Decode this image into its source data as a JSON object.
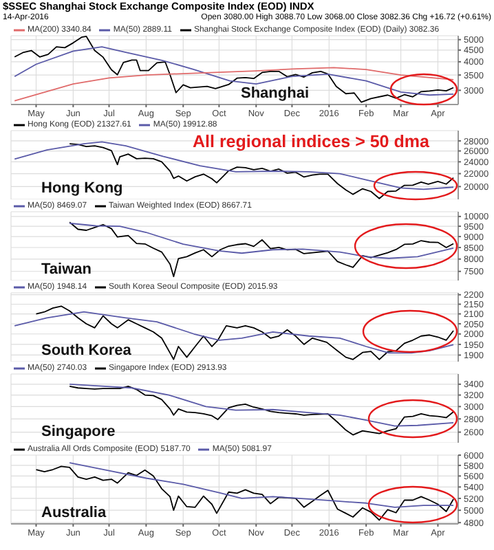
{
  "chart_data": [
    {
      "type": "line",
      "title": "$SSEC Shanghai Stock Exchange Composite Index (EOD) INDX",
      "subtitle": "14-Apr-2016",
      "annotations": [
        "Shanghai",
        "Open 3080.00 High 3088.70 Low 3068.00 Close 3082.36 Chg +16.72 (+0.61%)"
      ],
      "log": true,
      "grid": true,
      "legend": "top left",
      "xlim": [
        "2015-04-10",
        "2016-04-18"
      ],
      "xticks": [
        {
          "value": "2015-05-01",
          "label": "May"
        },
        {
          "value": "2015-06-01",
          "label": "Jun"
        },
        {
          "value": "2015-07-01",
          "label": "Jul"
        },
        {
          "value": "2015-08-01",
          "label": "Aug"
        },
        {
          "value": "2015-09-01",
          "label": "Sep"
        },
        {
          "value": "2015-10-01",
          "label": "Oct"
        },
        {
          "value": "2015-11-01",
          "label": "Nov"
        },
        {
          "value": "2015-12-01",
          "label": "Dec"
        },
        {
          "value": "2016-01-01",
          "label": "2016"
        },
        {
          "value": "2016-02-01",
          "label": "Feb"
        },
        {
          "value": "2016-03-01",
          "label": "Mar"
        },
        {
          "value": "2016-04-01",
          "label": "Apr"
        }
      ],
      "ylim": [
        2600,
        5200
      ],
      "yticks": [
        3000,
        3500,
        4000,
        4500,
        5000
      ],
      "series": [
        {
          "name": "Shanghai Stock Exchange Composite Index (EOD) (Daily) 3082.36",
          "color": "#000000",
          "x": [
            "2015-04-13",
            "2015-04-20",
            "2015-04-27",
            "2015-05-04",
            "2015-05-11",
            "2015-05-18",
            "2015-05-25",
            "2015-06-01",
            "2015-06-08",
            "2015-06-12",
            "2015-06-19",
            "2015-06-26",
            "2015-07-03",
            "2015-07-08",
            "2015-07-13",
            "2015-07-20",
            "2015-07-24",
            "2015-07-27",
            "2015-08-03",
            "2015-08-10",
            "2015-08-17",
            "2015-08-21",
            "2015-08-26",
            "2015-09-01",
            "2015-09-07",
            "2015-09-14",
            "2015-09-21",
            "2015-09-28",
            "2015-10-09",
            "2015-10-16",
            "2015-10-23",
            "2015-10-30",
            "2015-11-06",
            "2015-11-13",
            "2015-11-20",
            "2015-11-27",
            "2015-12-04",
            "2015-12-11",
            "2015-12-18",
            "2015-12-25",
            "2015-12-31",
            "2016-01-07",
            "2016-01-15",
            "2016-01-22",
            "2016-01-28",
            "2016-02-05",
            "2016-02-19",
            "2016-02-26",
            "2016-03-04",
            "2016-03-11",
            "2016-03-18",
            "2016-03-25",
            "2016-04-01",
            "2016-04-08",
            "2016-04-14"
          ],
          "values": [
            4200,
            4390,
            4480,
            4200,
            4310,
            4650,
            4610,
            4840,
            5120,
            5166,
            4480,
            4190,
            3690,
            3510,
            3970,
            4070,
            4070,
            3660,
            3660,
            3960,
            3990,
            3510,
            2930,
            3170,
            3080,
            3100,
            3120,
            3050,
            3180,
            3390,
            3410,
            3380,
            3590,
            3630,
            3630,
            3440,
            3520,
            3430,
            3580,
            3630,
            3540,
            3120,
            2900,
            2920,
            2660,
            2760,
            2860,
            2770,
            2870,
            2810,
            2960,
            2980,
            3010,
            2985,
            3082.36
          ]
        },
        {
          "name": "MA(50) 2889.11",
          "color": "#5a5aa8",
          "x": [
            "2015-04-13",
            "2015-05-01",
            "2015-06-01",
            "2015-06-25",
            "2015-07-15",
            "2015-08-15",
            "2015-09-10",
            "2015-10-10",
            "2015-11-01",
            "2015-12-01",
            "2015-12-31",
            "2016-02-01",
            "2016-03-01",
            "2016-03-25",
            "2016-04-14"
          ],
          "values": [
            3450,
            3900,
            4450,
            4650,
            4400,
            4050,
            3700,
            3300,
            3200,
            3450,
            3530,
            3300,
            2950,
            2860,
            2889.11
          ]
        },
        {
          "name": "MA(200) 3340.84",
          "color": "#e06a6a",
          "x": [
            "2015-04-13",
            "2015-06-01",
            "2015-07-01",
            "2015-08-01",
            "2015-09-01",
            "2015-10-01",
            "2015-11-01",
            "2015-12-01",
            "2016-01-05",
            "2016-02-01",
            "2016-03-01",
            "2016-04-14"
          ],
          "values": [
            2700,
            3200,
            3400,
            3500,
            3550,
            3600,
            3650,
            3720,
            3770,
            3700,
            3500,
            3340.84
          ]
        }
      ]
    },
    {
      "type": "line",
      "annotations": [
        "Hong Kong",
        "All regional indices > 50 dma"
      ],
      "log": true,
      "grid": true,
      "legend": "top left",
      "tick_labels": "y",
      "xlim": [
        "2015-04-10",
        "2016-04-18"
      ],
      "xticks": [
        {
          "value": "2015-05-01",
          "label": null
        },
        {
          "value": "2015-06-01",
          "label": null
        },
        {
          "value": "2015-07-01",
          "label": null
        },
        {
          "value": "2015-08-01",
          "label": null
        },
        {
          "value": "2015-09-01",
          "label": null
        },
        {
          "value": "2015-10-01",
          "label": null
        },
        {
          "value": "2015-11-01",
          "label": null
        },
        {
          "value": "2015-12-01",
          "label": null
        },
        {
          "value": "2016-01-01",
          "label": null
        },
        {
          "value": "2016-02-01",
          "label": null
        },
        {
          "value": "2016-03-01",
          "label": null
        },
        {
          "value": "2016-04-01",
          "label": null
        }
      ],
      "ylim": [
        18200,
        30200
      ],
      "yticks": [
        20000,
        22000,
        24000,
        26000,
        28000
      ],
      "series": [
        {
          "name": "Hong Kong (EOD) 21327.61",
          "color": "#000000",
          "x": [
            "2015-05-29",
            "2015-06-05",
            "2015-06-12",
            "2015-06-19",
            "2015-06-26",
            "2015-07-03",
            "2015-07-08",
            "2015-07-10",
            "2015-07-17",
            "2015-07-24",
            "2015-07-31",
            "2015-08-07",
            "2015-08-14",
            "2015-08-21",
            "2015-08-24",
            "2015-08-28",
            "2015-09-04",
            "2015-09-11",
            "2015-09-18",
            "2015-09-25",
            "2015-09-29",
            "2015-10-09",
            "2015-10-16",
            "2015-10-23",
            "2015-10-30",
            "2015-11-06",
            "2015-11-13",
            "2015-11-20",
            "2015-11-27",
            "2015-12-04",
            "2015-12-11",
            "2015-12-18",
            "2015-12-24",
            "2015-12-31",
            "2016-01-08",
            "2016-01-15",
            "2016-01-21",
            "2016-01-29",
            "2016-02-05",
            "2016-02-12",
            "2016-02-19",
            "2016-02-26",
            "2016-03-04",
            "2016-03-11",
            "2016-03-18",
            "2016-03-24",
            "2016-04-01",
            "2016-04-08",
            "2016-04-14"
          ],
          "values": [
            27420,
            27260,
            26860,
            27010,
            26660,
            26060,
            23520,
            24900,
            25410,
            24550,
            24640,
            24550,
            23990,
            22410,
            21250,
            21610,
            20840,
            21500,
            21920,
            21190,
            20560,
            22460,
            23070,
            22990,
            22640,
            22870,
            22400,
            22750,
            22070,
            22240,
            21460,
            21760,
            21920,
            21910,
            20450,
            19520,
            18890,
            19680,
            19290,
            18320,
            19290,
            19360,
            20180,
            20200,
            20670,
            20350,
            20780,
            20370,
            21327.61
          ]
        },
        {
          "name": "MA(50) 19912.88",
          "color": "#5a5aa8",
          "x": [
            "2015-04-13",
            "2015-05-10",
            "2015-06-10",
            "2015-06-25",
            "2015-07-15",
            "2015-08-15",
            "2015-09-15",
            "2015-10-15",
            "2015-11-15",
            "2015-12-15",
            "2016-01-10",
            "2016-02-01",
            "2016-03-01",
            "2016-03-20",
            "2016-04-14"
          ],
          "values": [
            24500,
            26200,
            27400,
            27800,
            27000,
            25000,
            23300,
            22300,
            22400,
            22300,
            22000,
            21000,
            19800,
            19600,
            19912.88
          ]
        }
      ]
    },
    {
      "type": "line",
      "annotations": [
        "Taiwan"
      ],
      "log": true,
      "grid": true,
      "legend": "top left",
      "tick_labels": "y",
      "xlim": [
        "2015-04-10",
        "2016-04-18"
      ],
      "xticks": [
        {
          "value": "2015-05-01",
          "label": null
        },
        {
          "value": "2015-06-01",
          "label": null
        },
        {
          "value": "2015-07-01",
          "label": null
        },
        {
          "value": "2015-08-01",
          "label": null
        },
        {
          "value": "2015-09-01",
          "label": null
        },
        {
          "value": "2015-10-01",
          "label": null
        },
        {
          "value": "2015-11-01",
          "label": null
        },
        {
          "value": "2015-12-01",
          "label": null
        },
        {
          "value": "2016-01-01",
          "label": null
        },
        {
          "value": "2016-02-01",
          "label": null
        },
        {
          "value": "2016-03-01",
          "label": null
        },
        {
          "value": "2016-04-01",
          "label": null
        }
      ],
      "ylim": [
        7150,
        10250
      ],
      "yticks": [
        7500,
        8000,
        8500,
        9000,
        9500,
        10000
      ],
      "series": [
        {
          "name": "Taiwan Weighted Index (EOD) 8667.71",
          "color": "#000000",
          "x": [
            "2015-05-29",
            "2015-06-05",
            "2015-06-12",
            "2015-06-19",
            "2015-06-26",
            "2015-07-03",
            "2015-07-08",
            "2015-07-17",
            "2015-07-24",
            "2015-07-31",
            "2015-08-07",
            "2015-08-14",
            "2015-08-21",
            "2015-08-24",
            "2015-08-28",
            "2015-09-04",
            "2015-09-11",
            "2015-09-18",
            "2015-09-25",
            "2015-10-02",
            "2015-10-09",
            "2015-10-16",
            "2015-10-23",
            "2015-10-30",
            "2015-11-06",
            "2015-11-13",
            "2015-11-20",
            "2015-11-27",
            "2015-12-04",
            "2015-12-11",
            "2015-12-18",
            "2015-12-31",
            "2016-01-08",
            "2016-01-15",
            "2016-01-21",
            "2016-01-29",
            "2016-02-05",
            "2016-02-19",
            "2016-02-26",
            "2016-03-04",
            "2016-03-11",
            "2016-03-18",
            "2016-03-25",
            "2016-04-01",
            "2016-04-08",
            "2016-04-14"
          ],
          "values": [
            9700,
            9350,
            9300,
            9440,
            9580,
            9380,
            8980,
            9050,
            8680,
            8660,
            8470,
            8300,
            7790,
            7300,
            8020,
            8100,
            8260,
            8400,
            8100,
            8400,
            8560,
            8630,
            8670,
            8550,
            8850,
            8450,
            8500,
            8400,
            8420,
            8230,
            8270,
            8340,
            7900,
            7760,
            7660,
            8140,
            8060,
            8270,
            8410,
            8640,
            8660,
            8810,
            8740,
            8730,
            8500,
            8667.71
          ]
        },
        {
          "name": "MA(50) 8469.07",
          "color": "#5a5aa8",
          "x": [
            "2015-05-29",
            "2015-06-20",
            "2015-07-10",
            "2015-08-01",
            "2015-09-01",
            "2015-10-01",
            "2015-10-20",
            "2015-11-15",
            "2015-12-10",
            "2016-01-10",
            "2016-02-01",
            "2016-02-20",
            "2016-03-15",
            "2016-04-14"
          ],
          "values": [
            9650,
            9520,
            9500,
            9200,
            8650,
            8350,
            8250,
            8400,
            8430,
            8300,
            8100,
            8030,
            8100,
            8469.07
          ]
        }
      ]
    },
    {
      "type": "line",
      "annotations": [
        "South Korea"
      ],
      "log": true,
      "grid": true,
      "legend": "top left",
      "tick_labels": "y",
      "xlim": [
        "2015-04-10",
        "2016-04-18"
      ],
      "xticks": [
        {
          "value": "2015-05-01",
          "label": null
        },
        {
          "value": "2015-06-01",
          "label": null
        },
        {
          "value": "2015-07-01",
          "label": null
        },
        {
          "value": "2015-08-01",
          "label": null
        },
        {
          "value": "2015-09-01",
          "label": null
        },
        {
          "value": "2015-10-01",
          "label": null
        },
        {
          "value": "2015-11-01",
          "label": null
        },
        {
          "value": "2015-12-01",
          "label": null
        },
        {
          "value": "2016-01-01",
          "label": null
        },
        {
          "value": "2016-02-01",
          "label": null
        },
        {
          "value": "2016-03-01",
          "label": null
        },
        {
          "value": "2016-04-01",
          "label": null
        }
      ],
      "ylim": [
        1870,
        2210
      ],
      "yticks": [
        1900,
        1950,
        2000,
        2050,
        2100,
        2150,
        2200
      ],
      "series": [
        {
          "name": "South Korea Seoul Composite (EOD) 2015.93",
          "color": "#000000",
          "x": [
            "2015-05-01",
            "2015-05-08",
            "2015-05-15",
            "2015-05-22",
            "2015-05-29",
            "2015-06-05",
            "2015-06-12",
            "2015-06-19",
            "2015-06-26",
            "2015-07-03",
            "2015-07-08",
            "2015-07-17",
            "2015-07-24",
            "2015-07-31",
            "2015-08-07",
            "2015-08-14",
            "2015-08-21",
            "2015-08-24",
            "2015-08-28",
            "2015-09-04",
            "2015-09-11",
            "2015-09-18",
            "2015-09-25",
            "2015-09-30",
            "2015-10-07",
            "2015-10-16",
            "2015-10-23",
            "2015-10-30",
            "2015-11-06",
            "2015-11-13",
            "2015-11-20",
            "2015-11-27",
            "2015-12-04",
            "2015-12-11",
            "2015-12-18",
            "2015-12-30",
            "2016-01-08",
            "2016-01-15",
            "2016-01-21",
            "2016-01-29",
            "2016-02-05",
            "2016-02-12",
            "2016-02-19",
            "2016-02-26",
            "2016-03-04",
            "2016-03-11",
            "2016-03-18",
            "2016-03-25",
            "2016-04-01",
            "2016-04-08",
            "2016-04-14"
          ],
          "values": [
            2100,
            2110,
            2130,
            2140,
            2115,
            2080,
            2050,
            2030,
            2090,
            2050,
            2030,
            2070,
            2050,
            2030,
            2010,
            1980,
            1910,
            1880,
            1940,
            1890,
            1940,
            1990,
            1940,
            1970,
            2040,
            2030,
            2040,
            2030,
            2010,
            1980,
            1990,
            2020,
            1990,
            1950,
            1980,
            1960,
            1920,
            1890,
            1880,
            1912,
            1917,
            1880,
            1915,
            1920,
            1955,
            1970,
            1990,
            1995,
            1985,
            1970,
            2015.93
          ]
        },
        {
          "name": "MA(50) 1948.14",
          "color": "#5a5aa8",
          "x": [
            "2015-04-13",
            "2015-05-10",
            "2015-06-10",
            "2015-07-15",
            "2015-08-10",
            "2015-09-10",
            "2015-10-01",
            "2015-10-20",
            "2015-11-15",
            "2015-12-15",
            "2016-01-10",
            "2016-02-01",
            "2016-02-20",
            "2016-03-10",
            "2016-03-25",
            "2016-04-14"
          ],
          "values": [
            2040,
            2080,
            2110,
            2080,
            2060,
            2000,
            1970,
            1980,
            2010,
            1990,
            1980,
            1940,
            1910,
            1910,
            1920,
            1948.14
          ]
        }
      ]
    },
    {
      "type": "line",
      "annotations": [
        "Singapore"
      ],
      "log": true,
      "grid": true,
      "legend": "top left",
      "tick_labels": "y",
      "xlim": [
        "2015-04-10",
        "2016-04-18"
      ],
      "xticks": [
        {
          "value": "2015-05-01",
          "label": null
        },
        {
          "value": "2015-06-01",
          "label": null
        },
        {
          "value": "2015-07-01",
          "label": null
        },
        {
          "value": "2015-08-01",
          "label": null
        },
        {
          "value": "2015-09-01",
          "label": null
        },
        {
          "value": "2015-10-01",
          "label": null
        },
        {
          "value": "2015-11-01",
          "label": null
        },
        {
          "value": "2015-12-01",
          "label": null
        },
        {
          "value": "2016-01-01",
          "label": null
        },
        {
          "value": "2016-02-01",
          "label": null
        },
        {
          "value": "2016-03-01",
          "label": null
        },
        {
          "value": "2016-04-01",
          "label": null
        }
      ],
      "ylim": [
        2450,
        3600
      ],
      "yticks": [
        2600,
        2800,
        3000,
        3200,
        3400
      ],
      "series": [
        {
          "name": "Singapore Index (EOD) 2913.93",
          "color": "#000000",
          "x": [
            "2015-05-29",
            "2015-06-05",
            "2015-06-12",
            "2015-06-19",
            "2015-06-26",
            "2015-07-03",
            "2015-07-10",
            "2015-07-17",
            "2015-07-24",
            "2015-07-31",
            "2015-08-07",
            "2015-08-14",
            "2015-08-21",
            "2015-08-24",
            "2015-08-28",
            "2015-09-04",
            "2015-09-11",
            "2015-09-18",
            "2015-09-25",
            "2015-09-30",
            "2015-10-09",
            "2015-10-16",
            "2015-10-23",
            "2015-10-30",
            "2015-11-06",
            "2015-11-13",
            "2015-11-20",
            "2015-11-27",
            "2015-12-04",
            "2015-12-11",
            "2015-12-18",
            "2015-12-31",
            "2016-01-08",
            "2016-01-15",
            "2016-01-21",
            "2016-01-29",
            "2016-02-05",
            "2016-02-12",
            "2016-02-19",
            "2016-02-26",
            "2016-03-04",
            "2016-03-11",
            "2016-03-18",
            "2016-03-25",
            "2016-04-01",
            "2016-04-08",
            "2016-04-14"
          ],
          "values": [
            3360,
            3330,
            3320,
            3310,
            3320,
            3320,
            3320,
            3360,
            3300,
            3200,
            3190,
            3120,
            2960,
            2860,
            2960,
            2910,
            2900,
            2880,
            2850,
            2790,
            2980,
            3020,
            3040,
            2990,
            2960,
            2920,
            2900,
            2890,
            2880,
            2860,
            2870,
            2880,
            2750,
            2630,
            2560,
            2620,
            2600,
            2580,
            2620,
            2650,
            2830,
            2840,
            2880,
            2850,
            2840,
            2820,
            2913.93
          ]
        },
        {
          "name": "MA(50) 2740.03",
          "color": "#5a5aa8",
          "x": [
            "2015-05-29",
            "2015-06-20",
            "2015-07-20",
            "2015-08-20",
            "2015-09-20",
            "2015-10-15",
            "2015-11-15",
            "2015-12-15",
            "2016-01-10",
            "2016-02-01",
            "2016-02-25",
            "2016-03-15",
            "2016-04-14"
          ],
          "values": [
            3400,
            3370,
            3330,
            3200,
            3000,
            2940,
            2950,
            2900,
            2860,
            2780,
            2690,
            2700,
            2740.03
          ]
        }
      ]
    },
    {
      "type": "line",
      "annotations": [
        "Australia"
      ],
      "log": true,
      "grid": true,
      "legend": "top left",
      "xlim": [
        "2015-04-10",
        "2016-04-18"
      ],
      "xticks": [
        {
          "value": "2015-05-01",
          "label": "May"
        },
        {
          "value": "2015-06-01",
          "label": "Jun"
        },
        {
          "value": "2015-07-01",
          "label": "Jul"
        },
        {
          "value": "2015-08-01",
          "label": "Aug"
        },
        {
          "value": "2015-09-01",
          "label": "Sep"
        },
        {
          "value": "2015-10-01",
          "label": "Oct"
        },
        {
          "value": "2015-11-01",
          "label": "Nov"
        },
        {
          "value": "2015-12-01",
          "label": "Dec"
        },
        {
          "value": "2016-01-01",
          "label": "2016"
        },
        {
          "value": "2016-02-01",
          "label": "Feb"
        },
        {
          "value": "2016-03-01",
          "label": "Mar"
        },
        {
          "value": "2016-04-01",
          "label": "Apr"
        }
      ],
      "ylim": [
        4780,
        6000
      ],
      "yticks": [
        4800,
        5000,
        5200,
        5400,
        5600,
        5800,
        6000
      ],
      "series": [
        {
          "name": "Australia All Ords Composite (EOD) 5187.70",
          "color": "#000000",
          "x": [
            "2015-05-01",
            "2015-05-08",
            "2015-05-15",
            "2015-05-22",
            "2015-05-29",
            "2015-06-05",
            "2015-06-12",
            "2015-06-19",
            "2015-06-26",
            "2015-07-03",
            "2015-07-08",
            "2015-07-17",
            "2015-07-24",
            "2015-07-31",
            "2015-08-07",
            "2015-08-14",
            "2015-08-21",
            "2015-08-24",
            "2015-08-28",
            "2015-09-04",
            "2015-09-11",
            "2015-09-18",
            "2015-09-25",
            "2015-09-29",
            "2015-10-09",
            "2015-10-16",
            "2015-10-23",
            "2015-10-30",
            "2015-11-06",
            "2015-11-13",
            "2015-11-20",
            "2015-11-27",
            "2015-12-04",
            "2015-12-11",
            "2015-12-18",
            "2015-12-24",
            "2015-12-31",
            "2016-01-08",
            "2016-01-15",
            "2016-01-21",
            "2016-01-29",
            "2016-02-05",
            "2016-02-12",
            "2016-02-19",
            "2016-02-26",
            "2016-03-04",
            "2016-03-11",
            "2016-03-18",
            "2016-03-25",
            "2016-04-01",
            "2016-04-08",
            "2016-04-14"
          ],
          "values": [
            5720,
            5680,
            5720,
            5780,
            5760,
            5580,
            5540,
            5580,
            5520,
            5540,
            5470,
            5660,
            5610,
            5710,
            5600,
            5370,
            5230,
            5000,
            5240,
            5060,
            5050,
            5240,
            5100,
            4950,
            5310,
            5290,
            5350,
            5290,
            5270,
            5110,
            5220,
            5210,
            5200,
            5050,
            5150,
            5240,
            5340,
            5020,
            4950,
            4890,
            5040,
            4970,
            4840,
            5010,
            4960,
            5170,
            5170,
            5230,
            5170,
            5100,
            4980,
            5187.7
          ]
        },
        {
          "name": "MA(50) 5081.97",
          "color": "#5a5aa8",
          "x": [
            "2015-05-29",
            "2015-07-01",
            "2015-08-01",
            "2015-09-01",
            "2015-10-01",
            "2015-10-20",
            "2015-11-15",
            "2015-12-15",
            "2016-01-10",
            "2016-02-01",
            "2016-02-25",
            "2016-03-20",
            "2016-04-14"
          ],
          "values": [
            5850,
            5700,
            5560,
            5450,
            5300,
            5200,
            5230,
            5190,
            5150,
            5120,
            5050,
            5080,
            5081.97
          ]
        }
      ]
    }
  ]
}
